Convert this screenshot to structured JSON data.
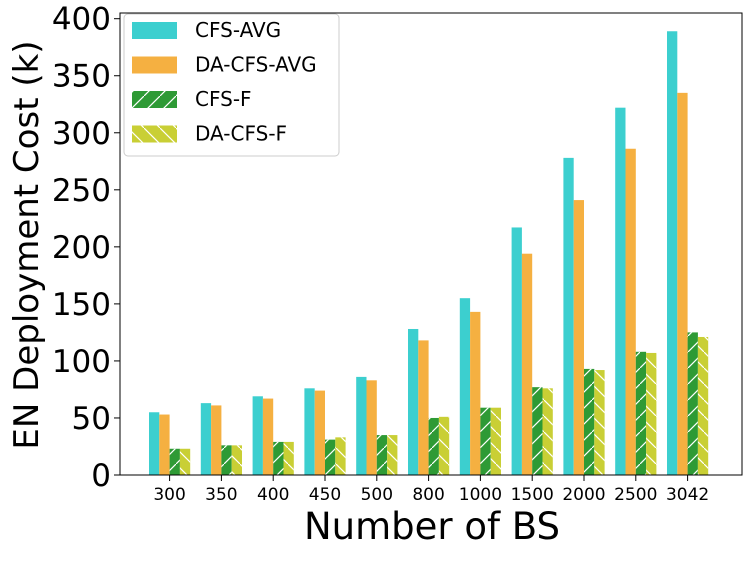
{
  "chart_data": {
    "type": "bar",
    "title": "",
    "xlabel": "Number of BS",
    "ylabel": "EN Deployment Cost (k)",
    "ylim": [
      0,
      405
    ],
    "yticks": [
      0,
      50,
      100,
      150,
      200,
      250,
      300,
      350,
      400
    ],
    "grid": false,
    "legend_position": "top-left",
    "categories": [
      "300",
      "350",
      "400",
      "450",
      "500",
      "800",
      "1000",
      "1500",
      "2000",
      "2500",
      "3042"
    ],
    "series": [
      {
        "name": "CFS-AVG",
        "color": "#3ccfcf",
        "hatch": "none",
        "values": [
          55,
          63,
          69,
          76,
          86,
          128,
          155,
          217,
          278,
          322,
          389
        ]
      },
      {
        "name": "DA-CFS-AVG",
        "color": "#f5b041",
        "hatch": "none",
        "values": [
          53,
          61,
          67,
          74,
          83,
          118,
          143,
          194,
          241,
          286,
          335
        ]
      },
      {
        "name": "CFS-F",
        "color": "#2e9a35",
        "hatch": "forward",
        "values": [
          23,
          26,
          29,
          31,
          35,
          50,
          59,
          77,
          93,
          108,
          125
        ]
      },
      {
        "name": "DA-CFS-F",
        "color": "#c9cf35",
        "hatch": "backward",
        "values": [
          23,
          26,
          29,
          33,
          35,
          51,
          59,
          76,
          92,
          107,
          121
        ]
      }
    ]
  }
}
